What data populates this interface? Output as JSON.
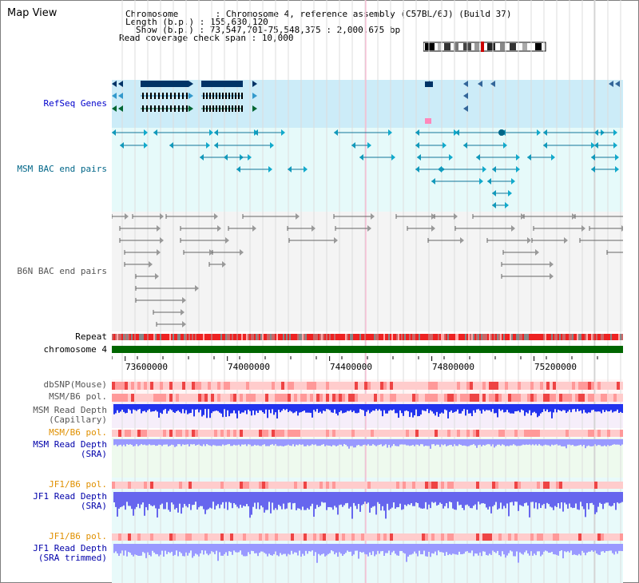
{
  "page": {
    "title": "Map View"
  },
  "info": {
    "chromosome_line": "Chromosome       : Chromosome 4, reference assembly (C57BL/6J) (Build 37)",
    "length_line": "Length (b.p.) : 155,630,120",
    "show_line": "Show (b.p.) : 73,547,701-75,548,375 : 2,000,675 bp",
    "coverage_line": "Read coverage check span : 10,000"
  },
  "tracks": {
    "refseq": "RefSeq Genes",
    "msm_bac": "MSM BAC end pairs",
    "b6n_bac": "B6N BAC end pairs",
    "repeat": "Repeat",
    "chromosome": "chromosome 4",
    "dbsnp": "dbSNP(Mouse)",
    "msm_b6_pol": "MSM/B6 pol.",
    "msm_depth_cap_1": "MSM Read Depth",
    "msm_depth_cap_2": "(Capillary)",
    "msm_b6_pol2": "MSM/B6 pol.",
    "msm_depth_sra_1": "MSM Read Depth",
    "msm_depth_sra_2": "(SRA)",
    "jf1_b6_pol": "JF1/B6 pol.",
    "jf1_depth_sra_1": "JF1 Read Depth",
    "jf1_depth_sra_2": "(SRA)",
    "jf1_b6_pol2": "JF1/B6 pol.",
    "jf1_depth_trim_1": "JF1 Read Depth",
    "jf1_depth_trim_2": "(SRA trimmed)"
  },
  "axis": {
    "ticks": [
      "73600000",
      "74000000",
      "74400000",
      "74800000",
      "75200000"
    ],
    "tick_values": [
      73600000,
      74000000,
      74400000,
      74800000,
      75200000
    ],
    "range_start": 73547701,
    "range_end": 75548375
  },
  "colors": {
    "refseq_bg": "#ccecf8",
    "msm_bg": "#e6fafa",
    "b6n_bg": "#f4f4f4",
    "chromosome_bar": "#006600",
    "repeat": "#ee2222",
    "depth_cap": "#2233ee",
    "depth_sra": "#9999ff",
    "jf1_depth": "#6666ee",
    "pol_light": "#ffcccc",
    "pol_dark": "#ee4444",
    "sra_band_bg": "#eefaee",
    "cap_band_bg": "#f6eefa",
    "lower_bg": "#e8fafa",
    "highlight_line": "#ffaacc"
  }
}
